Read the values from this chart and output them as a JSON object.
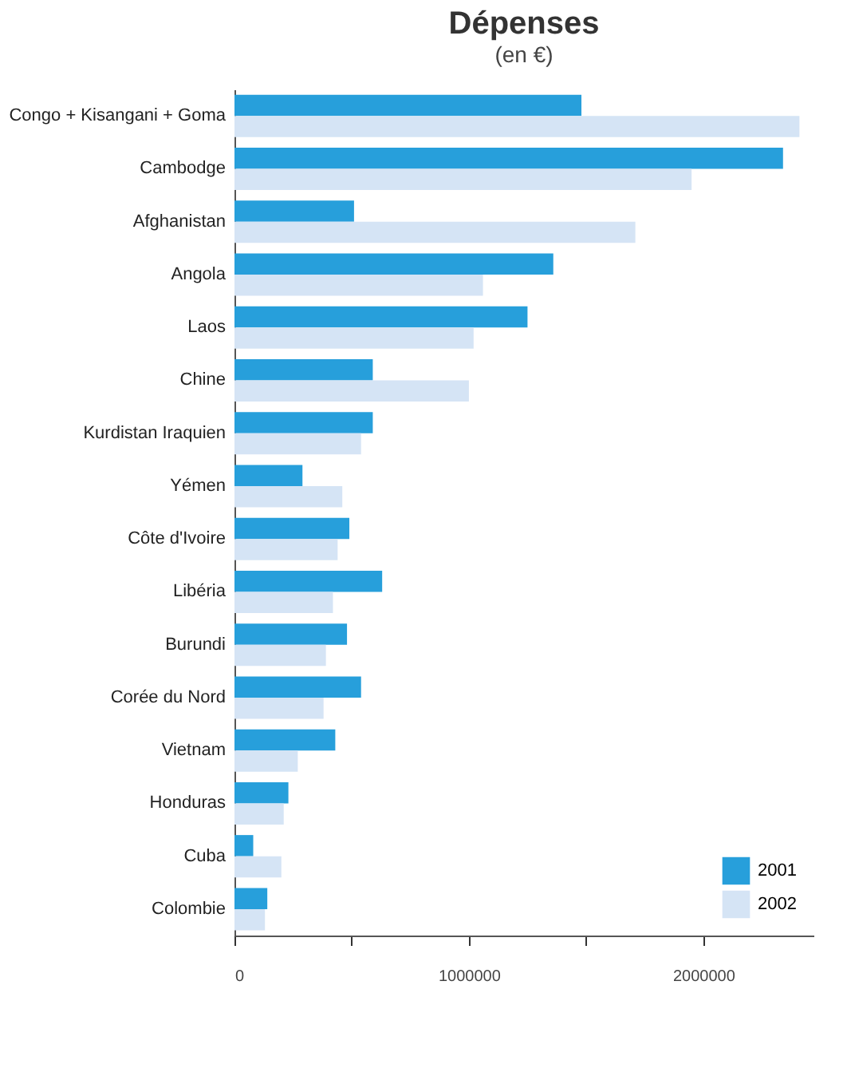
{
  "chart_data": {
    "type": "bar",
    "orientation": "horizontal",
    "title": "Dépenses",
    "subtitle": "(en €)",
    "categories": [
      "Congo + Kisangani + Goma",
      "Cambodge",
      "Afghanistan",
      "Angola",
      "Laos",
      "Chine",
      "Kurdistan Iraquien",
      "Yémen",
      "Côte d'Ivoire",
      "Libéria",
      "Burundi",
      "Corée du Nord",
      "Vietnam",
      "Honduras",
      "Cuba",
      "Colombie"
    ],
    "series": [
      {
        "name": "2001",
        "color": "#279fdb",
        "values": [
          1480000,
          2340000,
          510000,
          1360000,
          1250000,
          590000,
          590000,
          290000,
          490000,
          630000,
          480000,
          540000,
          430000,
          230000,
          80000,
          140000
        ]
      },
      {
        "name": "2002",
        "color": "#d5e4f5",
        "values": [
          2410000,
          1950000,
          1710000,
          1060000,
          1020000,
          1000000,
          540000,
          460000,
          440000,
          420000,
          390000,
          380000,
          270000,
          210000,
          200000,
          130000
        ]
      }
    ],
    "xlim": [
      0,
      2470000
    ],
    "xticks": [
      0,
      {
        "value": 500000,
        "label": null
      },
      1000000,
      {
        "value": 1500000,
        "label": null
      },
      2000000
    ],
    "grid": false,
    "legend": "bottom right"
  }
}
